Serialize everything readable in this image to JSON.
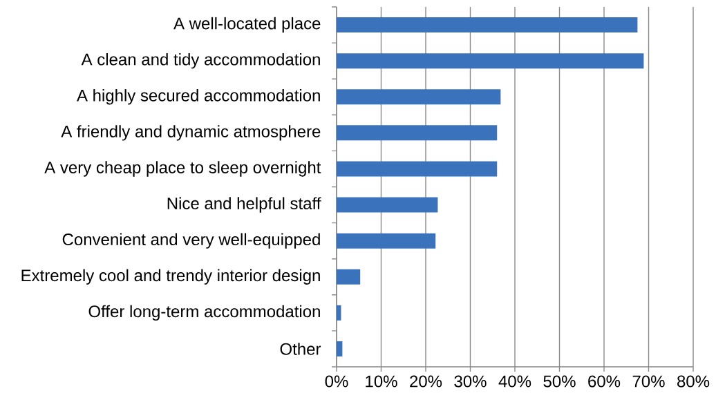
{
  "chart_data": {
    "type": "bar",
    "orientation": "horizontal",
    "categories": [
      "A well-located place",
      "A clean and tidy accommodation",
      "A highly secured accommodation",
      "A friendly and dynamic atmosphere",
      "A very cheap place to sleep overnight",
      "Nice and helpful staff",
      "Convenient and very well-equipped",
      "Extremely cool and trendy interior design",
      "Offer long-term accommodation",
      "Other"
    ],
    "values": [
      67.5,
      68.9,
      36.8,
      36.0,
      36.0,
      22.7,
      22.2,
      5.3,
      1.0,
      1.3
    ],
    "color": "#3a72bb",
    "xlim": [
      0,
      80
    ],
    "xticks": [
      {
        "value": 0,
        "label": "0%"
      },
      {
        "value": 10,
        "label": "10%"
      },
      {
        "value": 20,
        "label": "20%"
      },
      {
        "value": 30,
        "label": "30%"
      },
      {
        "value": 40,
        "label": "40%"
      },
      {
        "value": 50,
        "label": "50%"
      },
      {
        "value": 60,
        "label": "60%"
      },
      {
        "value": 70,
        "label": "70%"
      },
      {
        "value": 80,
        "label": "80%"
      }
    ],
    "grid": "x"
  }
}
